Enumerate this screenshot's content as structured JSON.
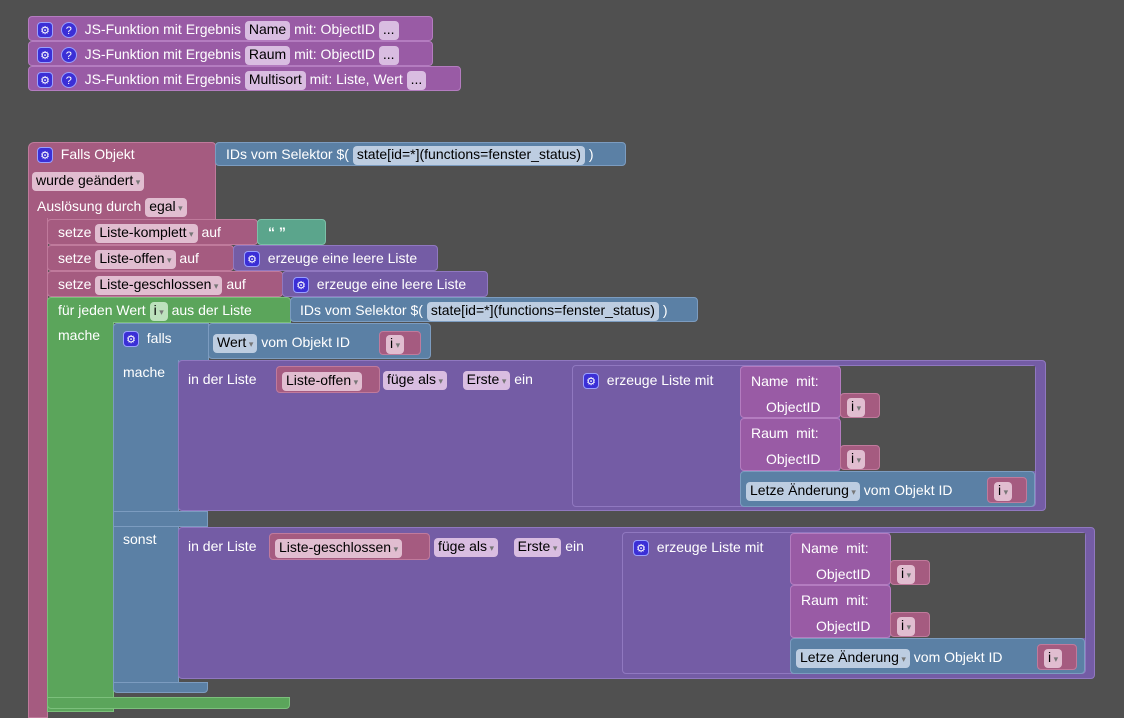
{
  "functions": [
    {
      "prefix": "JS-Funktion mit Ergebnis",
      "name": "Name",
      "suffix": "mit: ObjectID",
      "more": "..."
    },
    {
      "prefix": "JS-Funktion mit Ergebnis",
      "name": "Raum",
      "suffix": "mit: ObjectID",
      "more": "..."
    },
    {
      "prefix": "JS-Funktion mit Ergebnis",
      "name": "Multisort",
      "suffix": "mit: Liste, Wert",
      "more": "..."
    }
  ],
  "trigger": {
    "label": "Falls Objekt",
    "selector_label": "IDs vom Selektor $(",
    "selector": "state[id=*](functions=fenster_status)",
    "close": ")",
    "changed": "wurde geändert",
    "trigger_by": "Auslösung durch",
    "trigger_value": "egal"
  },
  "sets": [
    {
      "label": "setze",
      "var": "Liste-komplett",
      "on": "auf",
      "value": "“ ”"
    },
    {
      "label": "setze",
      "var": "Liste-offen",
      "on": "auf",
      "value": "erzeuge eine leere Liste"
    },
    {
      "label": "setze",
      "var": "Liste-geschlossen",
      "on": "auf",
      "value": "erzeuge eine leere Liste"
    }
  ],
  "foreach": {
    "label": "für jeden Wert",
    "var": "i",
    "from": "aus der Liste",
    "do": "mache",
    "selector_label": "IDs vom Selektor $(",
    "selector": "state[id=*](functions=fenster_status)",
    "close": ")"
  },
  "if": {
    "label": "falls",
    "field": "Wert",
    "of": "vom Objekt ID",
    "var": "i",
    "then": "mache",
    "else": "sonst"
  },
  "inserts": [
    {
      "in": "in der Liste",
      "list": "Liste-offen",
      "mode": "füge als",
      "pos": "Erste",
      "ein": "ein",
      "create": "erzeuge Liste mit",
      "name": "Name",
      "mit": "mit:",
      "objid": "ObjectID",
      "var": "i",
      "raum": "Raum",
      "last": "Letze Änderung",
      "of": "vom Objekt ID"
    },
    {
      "in": "in der Liste",
      "list": "Liste-geschlossen",
      "mode": "füge als",
      "pos": "Erste",
      "ein": "ein",
      "create": "erzeuge Liste mit",
      "name": "Name",
      "mit": "mit:",
      "objid": "ObjectID",
      "var": "i",
      "raum": "Raum",
      "last": "Letze Änderung",
      "of": "vom Objekt ID"
    }
  ]
}
